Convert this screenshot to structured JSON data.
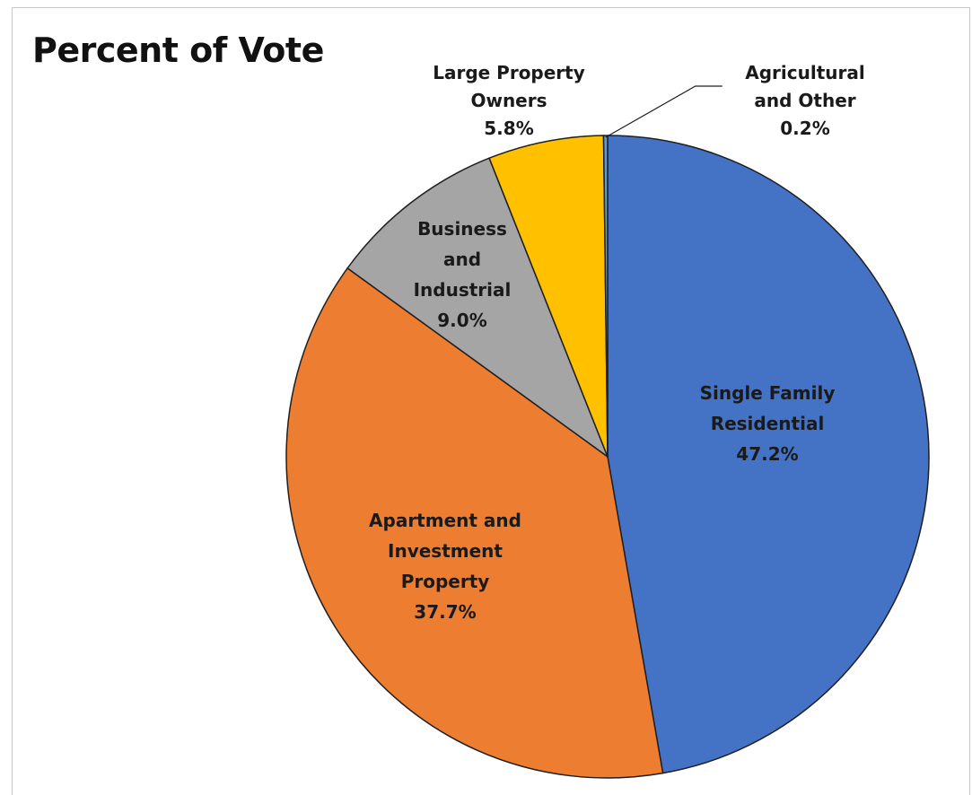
{
  "chart_data": {
    "type": "pie",
    "title": "Percent of Vote",
    "slices": [
      {
        "name": "Single Family Residential",
        "label_lines": [
          "Single Family",
          "Residential"
        ],
        "value_label": "47.2%",
        "value": 47.2,
        "color": "#4472C4"
      },
      {
        "name": "Apartment and Investment Property",
        "label_lines": [
          "Apartment and",
          "Investment",
          "Property"
        ],
        "value_label": "37.7%",
        "value": 37.7,
        "color": "#ED7D31"
      },
      {
        "name": "Business and Industrial",
        "label_lines": [
          "Business",
          "and",
          "Industrial"
        ],
        "value_label": "9.0%",
        "value": 9.0,
        "color": "#A5A5A5"
      },
      {
        "name": "Large Property Owners",
        "label_lines": [
          "Large Property",
          "Owners"
        ],
        "value_label": "5.8%",
        "value": 5.8,
        "color": "#FFC000"
      },
      {
        "name": "Agricultural and Other",
        "label_lines": [
          "Agricultural",
          "and Other"
        ],
        "value_label": "0.2%",
        "value": 0.2,
        "color": "#5B9BD5"
      }
    ]
  }
}
